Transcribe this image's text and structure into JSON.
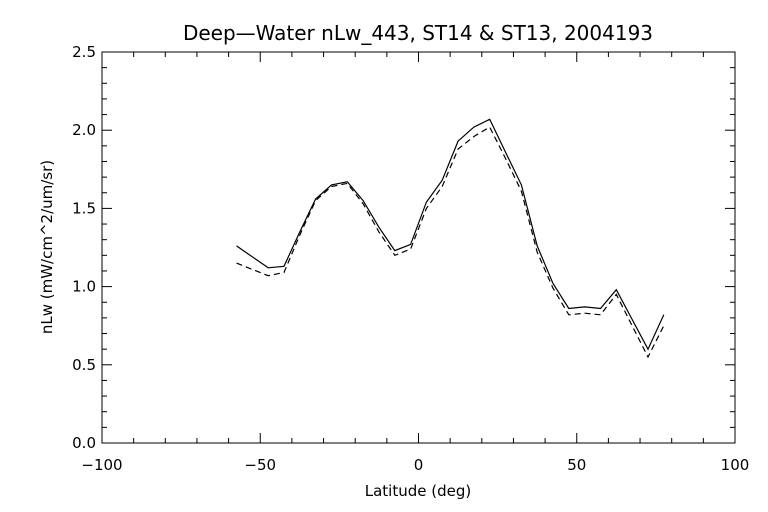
{
  "chart_data": {
    "type": "line",
    "title": "Deep—Water nLw_443, ST14 & ST13, 2004193",
    "xlabel": "Latitude (deg)",
    "ylabel": "nLw (mW/cm^2/um/sr)",
    "xlim": [
      -100,
      100
    ],
    "ylim": [
      0.0,
      2.5
    ],
    "xticks": [
      -100,
      -50,
      0,
      50,
      100
    ],
    "xtick_labels": [
      "−100",
      "−50",
      "0",
      "50",
      "100"
    ],
    "yticks": [
      0.0,
      0.5,
      1.0,
      1.5,
      2.0,
      2.5
    ],
    "ytick_labels": [
      "0.0",
      "0.5",
      "1.0",
      "1.5",
      "2.0",
      "2.5"
    ],
    "grid": false,
    "series": [
      {
        "style": "solid",
        "color": "#000000",
        "x": [
          -57.5,
          -47.5,
          -42.5,
          -37.5,
          -32.5,
          -27.5,
          -22.5,
          -17.5,
          -12.5,
          -7.5,
          -2.5,
          2.5,
          7.5,
          12.5,
          17.5,
          22.5,
          27.5,
          32.5,
          37.5,
          42.5,
          47.5,
          52.5,
          57.5,
          62.5,
          67.5,
          72.5,
          77.5
        ],
        "y": [
          1.26,
          1.12,
          1.13,
          1.35,
          1.56,
          1.65,
          1.67,
          1.55,
          1.38,
          1.23,
          1.27,
          1.54,
          1.68,
          1.93,
          2.02,
          2.07,
          1.86,
          1.65,
          1.26,
          1.02,
          0.86,
          0.87,
          0.86,
          0.98,
          0.79,
          0.6,
          0.82
        ]
      },
      {
        "style": "dashed",
        "color": "#000000",
        "x": [
          -57.5,
          -47.5,
          -42.5,
          -37.5,
          -32.5,
          -27.5,
          -22.5,
          -17.5,
          -12.5,
          -7.5,
          -2.5,
          2.5,
          7.5,
          12.5,
          17.5,
          22.5,
          27.5,
          32.5,
          37.5,
          42.5,
          47.5,
          52.5,
          57.5,
          62.5,
          67.5,
          72.5,
          77.5
        ],
        "y": [
          1.15,
          1.07,
          1.09,
          1.33,
          1.55,
          1.64,
          1.66,
          1.53,
          1.35,
          1.2,
          1.24,
          1.5,
          1.64,
          1.88,
          1.96,
          2.02,
          1.82,
          1.61,
          1.22,
          0.99,
          0.82,
          0.83,
          0.82,
          0.95,
          0.75,
          0.55,
          0.75
        ]
      }
    ]
  }
}
